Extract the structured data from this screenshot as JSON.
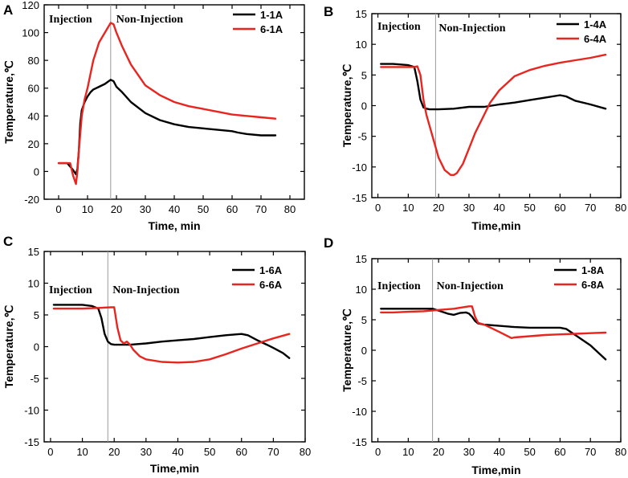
{
  "chart_data": [
    {
      "type": "line",
      "panel": "A",
      "xlabel": "Time,   min",
      "ylabel": "Temperature,℃",
      "xlim": [
        -5,
        85
      ],
      "ylim": [
        -20,
        120
      ],
      "xticks": [
        0,
        10,
        20,
        30,
        40,
        50,
        60,
        70,
        80
      ],
      "yticks": [
        -20,
        0,
        20,
        40,
        60,
        80,
        100,
        120
      ],
      "divider_x": 18,
      "annotations": [
        "Injection",
        "Non-Injection"
      ],
      "legend_position": "top-right",
      "series": [
        {
          "name": "1-1A",
          "color": "#000000",
          "x": [
            0,
            3,
            5,
            6,
            6.5,
            7,
            7.5,
            8,
            9,
            10,
            11,
            12,
            14,
            16,
            18,
            19,
            20,
            22,
            25,
            30,
            35,
            40,
            45,
            50,
            55,
            60,
            62,
            65,
            70,
            75
          ],
          "y": [
            6,
            6,
            1,
            -2,
            2,
            15,
            35,
            44,
            50,
            54,
            57,
            59,
            61,
            63,
            66,
            65,
            61,
            57,
            50,
            42,
            37,
            34,
            32,
            31,
            30,
            29,
            28,
            27,
            26,
            26
          ]
        },
        {
          "name": "6-1A",
          "color": "#e8251f",
          "x": [
            0,
            4,
            5,
            6,
            6.5,
            7,
            8,
            9,
            10,
            11,
            12,
            14,
            16,
            18,
            19,
            20,
            22,
            25,
            30,
            35,
            40,
            45,
            50,
            55,
            60,
            65,
            70,
            75
          ],
          "y": [
            6,
            6,
            -3,
            -9,
            0,
            15,
            40,
            52,
            60,
            70,
            80,
            93,
            100,
            107,
            106,
            100,
            90,
            77,
            62,
            55,
            50,
            47,
            45,
            43,
            41,
            40,
            39,
            38
          ]
        }
      ]
    },
    {
      "type": "line",
      "panel": "B",
      "xlabel": "Time,min",
      "ylabel": "Temperature,℃",
      "xlim": [
        -2,
        80
      ],
      "ylim": [
        -15,
        15
      ],
      "xticks": [
        0,
        10,
        20,
        30,
        40,
        50,
        60,
        70,
        80
      ],
      "yticks": [
        -15,
        -10,
        -5,
        0,
        5,
        10,
        15
      ],
      "divider_x": 19,
      "annotations": [
        "Injection",
        "Non-Injection"
      ],
      "legend_position": "top-right",
      "series": [
        {
          "name": "1-4A",
          "color": "#000000",
          "x": [
            1,
            5,
            10,
            12,
            13,
            14,
            15,
            16,
            17,
            20,
            25,
            30,
            35,
            40,
            45,
            50,
            55,
            60,
            62,
            65,
            70,
            75
          ],
          "y": [
            6.8,
            6.8,
            6.6,
            6.3,
            4.0,
            1.0,
            -0.3,
            -0.5,
            -0.6,
            -0.6,
            -0.5,
            -0.2,
            -0.2,
            0.2,
            0.5,
            0.9,
            1.3,
            1.7,
            1.5,
            0.8,
            0.2,
            -0.5
          ]
        },
        {
          "name": "6-4A",
          "color": "#e8251f",
          "x": [
            1,
            5,
            10,
            12,
            13,
            14,
            15,
            16,
            18,
            20,
            22,
            24,
            25,
            26,
            28,
            30,
            32,
            35,
            37,
            40,
            45,
            50,
            55,
            60,
            65,
            70,
            75
          ],
          "y": [
            6.3,
            6.3,
            6.3,
            6.3,
            6.4,
            5.0,
            1.0,
            -1.5,
            -5.0,
            -8.5,
            -10.5,
            -11.3,
            -11.3,
            -11.0,
            -9.5,
            -7.0,
            -4.5,
            -1.5,
            0.5,
            2.5,
            4.8,
            5.8,
            6.5,
            7.0,
            7.4,
            7.8,
            8.3
          ]
        }
      ]
    },
    {
      "type": "line",
      "panel": "C",
      "xlabel": "Time,min",
      "ylabel": "Temperature,℃",
      "xlim": [
        -2,
        80
      ],
      "ylim": [
        -15,
        15
      ],
      "xticks": [
        0,
        10,
        20,
        30,
        40,
        50,
        60,
        70,
        80
      ],
      "yticks": [
        -15,
        -10,
        -5,
        0,
        5,
        10,
        15
      ],
      "divider_x": 18,
      "annotations": [
        "Injection",
        "Non-Injection"
      ],
      "legend_position": "top-right",
      "series": [
        {
          "name": "1-6A",
          "color": "#000000",
          "x": [
            1,
            5,
            10,
            13,
            15,
            16,
            17,
            18,
            19,
            20,
            22,
            25,
            30,
            35,
            40,
            45,
            50,
            55,
            60,
            62,
            65,
            68,
            70,
            73,
            75
          ],
          "y": [
            6.6,
            6.6,
            6.6,
            6.4,
            6.0,
            4.5,
            2.0,
            0.8,
            0.4,
            0.3,
            0.3,
            0.3,
            0.5,
            0.8,
            1.0,
            1.2,
            1.5,
            1.8,
            2.0,
            1.8,
            1.0,
            0.3,
            -0.2,
            -1.0,
            -1.8
          ]
        },
        {
          "name": "6-6A",
          "color": "#e8251f",
          "x": [
            1,
            5,
            10,
            15,
            19,
            20,
            21,
            22,
            23,
            24,
            25,
            26,
            28,
            30,
            35,
            40,
            45,
            50,
            55,
            60,
            65,
            70,
            75
          ],
          "y": [
            6.0,
            6.0,
            6.0,
            6.1,
            6.2,
            6.2,
            3.0,
            1.0,
            0.5,
            0.8,
            0.3,
            -0.5,
            -1.5,
            -2.0,
            -2.4,
            -2.5,
            -2.4,
            -2.0,
            -1.2,
            -0.3,
            0.5,
            1.3,
            2.0
          ]
        }
      ]
    },
    {
      "type": "line",
      "panel": "D",
      "xlabel": "Time,min",
      "ylabel": "Temperature,℃",
      "xlim": [
        -2,
        80
      ],
      "ylim": [
        -15,
        15
      ],
      "xticks": [
        0,
        10,
        20,
        30,
        40,
        50,
        60,
        70,
        80
      ],
      "yticks": [
        -15,
        -10,
        -5,
        0,
        5,
        10,
        15
      ],
      "divider_x": 18,
      "annotations": [
        "Injection",
        "Non-Injection"
      ],
      "legend_position": "top-right",
      "series": [
        {
          "name": "1-8A",
          "color": "#000000",
          "x": [
            1,
            5,
            10,
            15,
            18,
            20,
            23,
            25,
            27,
            29,
            30,
            31,
            32,
            33,
            35,
            40,
            45,
            50,
            55,
            60,
            62,
            65,
            70,
            75
          ],
          "y": [
            6.8,
            6.8,
            6.8,
            6.8,
            6.8,
            6.5,
            6.0,
            5.8,
            6.1,
            6.2,
            6.0,
            5.5,
            4.8,
            4.4,
            4.2,
            4.0,
            3.8,
            3.7,
            3.7,
            3.7,
            3.5,
            2.5,
            0.8,
            -1.5
          ]
        },
        {
          "name": "6-8A",
          "color": "#e8251f",
          "x": [
            1,
            5,
            10,
            15,
            20,
            25,
            30,
            31,
            32,
            33,
            35,
            40,
            44,
            45,
            50,
            55,
            60,
            65,
            70,
            75
          ],
          "y": [
            6.2,
            6.2,
            6.3,
            6.4,
            6.6,
            6.8,
            7.2,
            7.2,
            5.5,
            4.5,
            4.2,
            3.0,
            2.0,
            2.1,
            2.3,
            2.5,
            2.6,
            2.7,
            2.8,
            2.9
          ]
        }
      ]
    }
  ]
}
